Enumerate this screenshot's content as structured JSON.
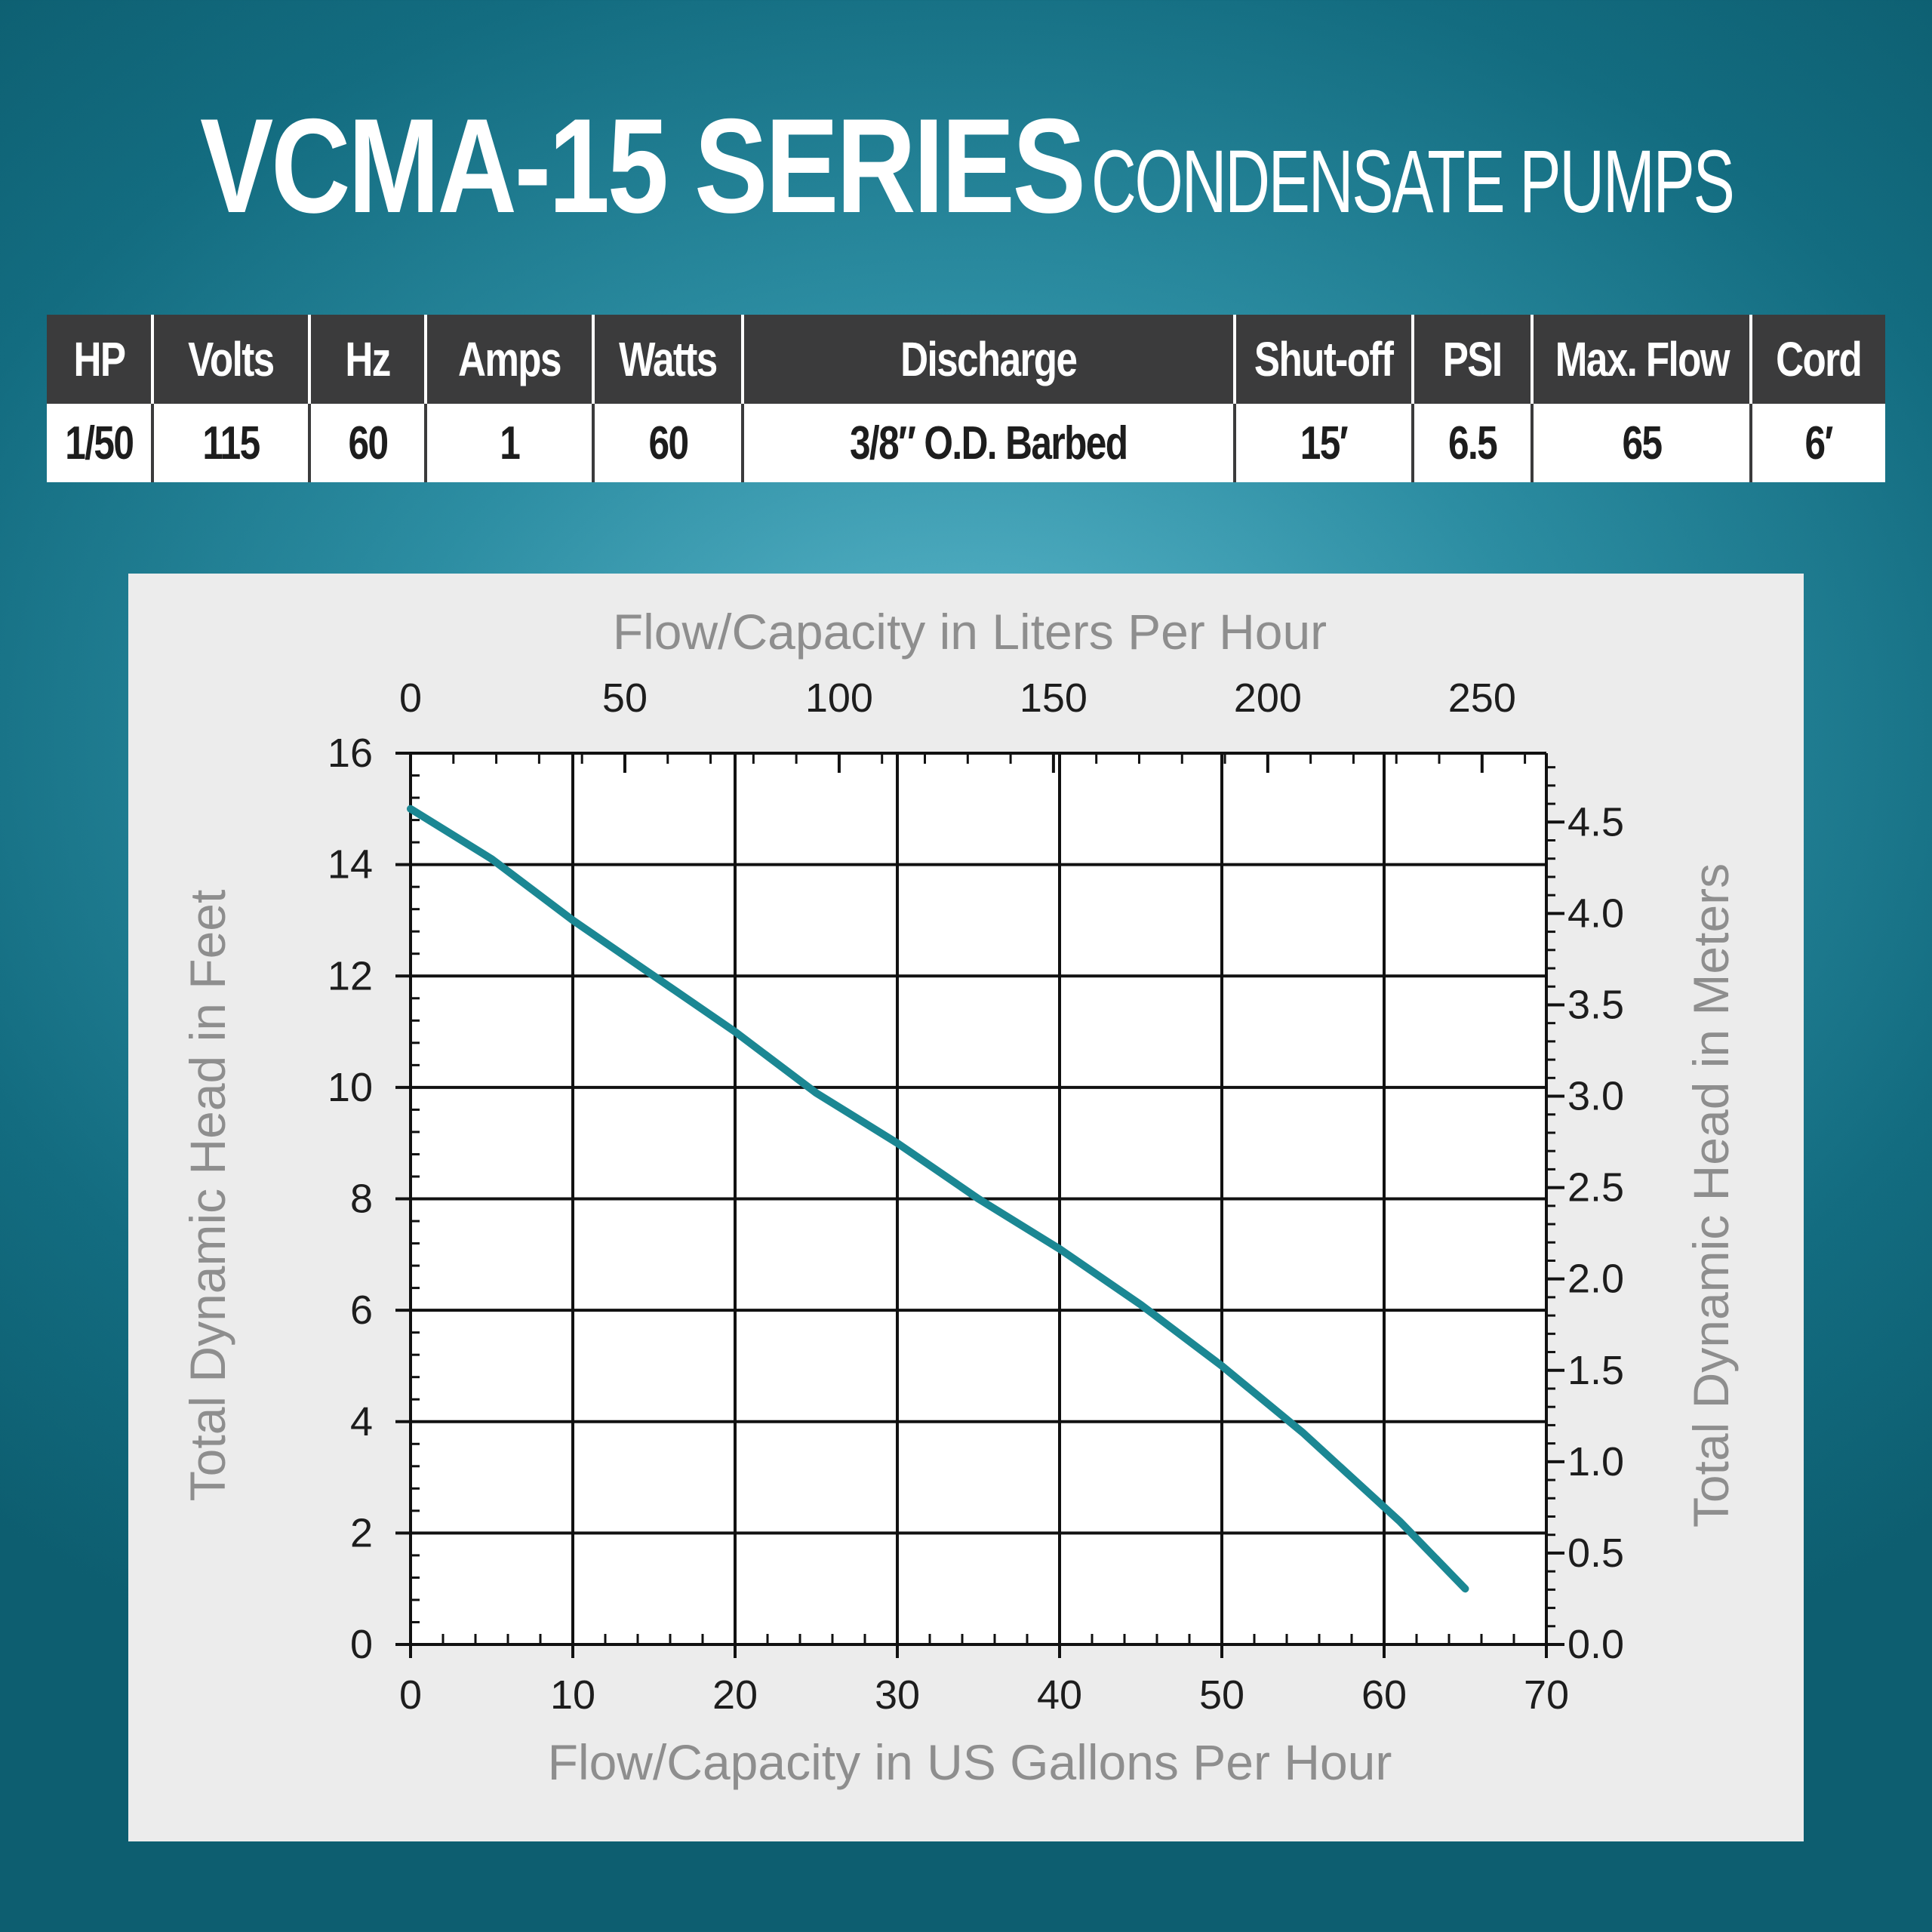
{
  "header": {
    "title_main": "VCMA-15 SERIES",
    "title_sub": "CONDENSATE PUMPS"
  },
  "specs": {
    "columns": [
      "HP",
      "Volts",
      "Hz",
      "Amps",
      "Watts",
      "Discharge",
      "Shut-off",
      "PSI",
      "Max. Flow",
      "Cord"
    ],
    "values": [
      "1/50",
      "115",
      "60",
      "1",
      "60",
      "3/8″ O.D. Barbed",
      "15′",
      "6.5",
      "65",
      "6′"
    ]
  },
  "colors": {
    "curve": "#1b8793",
    "grid": "#111111",
    "axis_title": "#8e8e8e"
  },
  "chart_data": {
    "type": "line",
    "title": "",
    "xlabel": "Flow/Capacity in US Gallons Per Hour",
    "ylabel": "Total Dynamic Head in Feet",
    "x2label": "Flow/Capacity in Liters Per Hour",
    "y2label": "Total Dynamic Head in Meters",
    "xlim": [
      0,
      70
    ],
    "ylim": [
      0,
      16
    ],
    "x2lim": [
      0,
      265
    ],
    "y2lim": [
      0,
      4.877
    ],
    "xticks": [
      "0",
      "10",
      "20",
      "30",
      "40",
      "50",
      "60",
      "70"
    ],
    "yticks": [
      "0",
      "2",
      "4",
      "6",
      "8",
      "10",
      "12",
      "14",
      "16"
    ],
    "x2ticks": [
      "0",
      "50",
      "100",
      "150",
      "200",
      "250"
    ],
    "y2ticks": [
      "0.0",
      "0.5",
      "1.0",
      "1.5",
      "2.0",
      "2.5",
      "3.0",
      "3.5",
      "4.0",
      "4.5"
    ],
    "grid": true,
    "series": [
      {
        "x": [
          0,
          5,
          10,
          15,
          20,
          25,
          30,
          35,
          40,
          45,
          50,
          55,
          58,
          61,
          65
        ],
        "y": [
          15,
          14.1,
          13,
          12,
          11,
          9.9,
          9,
          8,
          7.1,
          6.1,
          5,
          3.8,
          3,
          2.2,
          1
        ]
      }
    ]
  }
}
